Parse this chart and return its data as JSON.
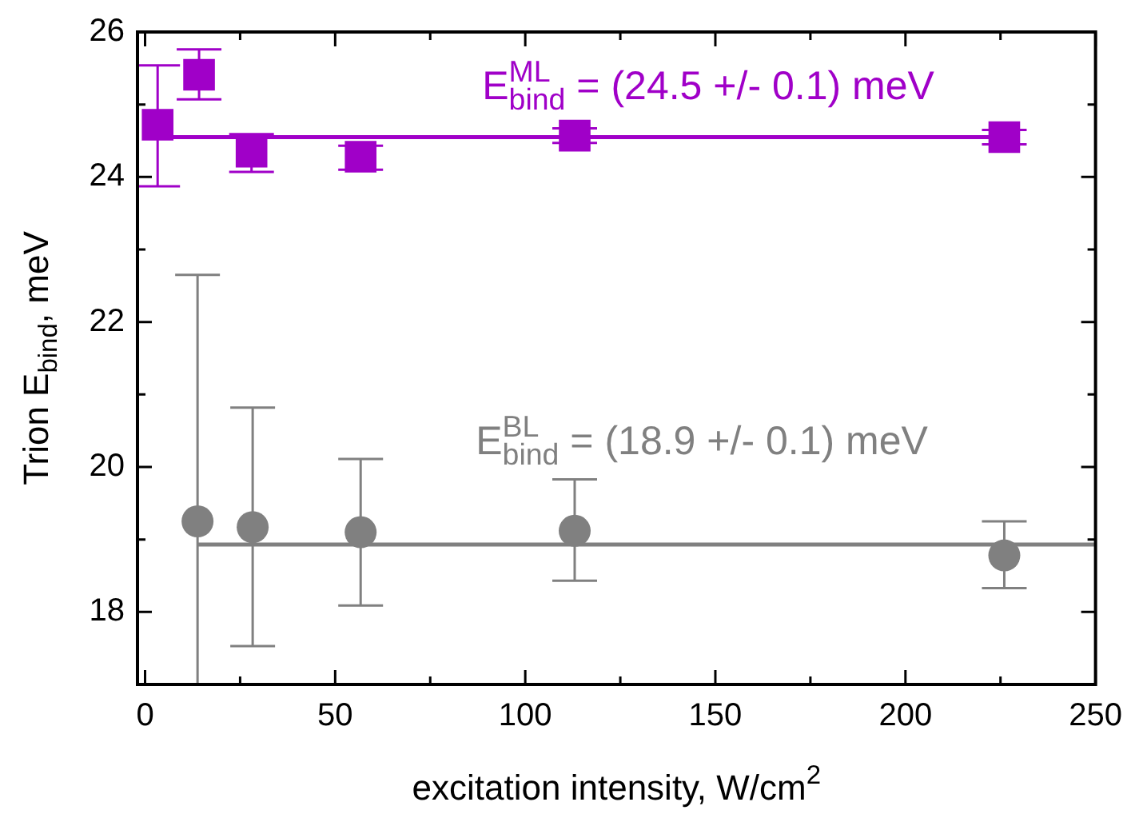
{
  "chart_data": {
    "type": "scatter",
    "xlabel": "excitation intensity, W/cm$^{2}$",
    "ylabel": "Trion E$_{bind}$, meV",
    "xlim": [
      -2,
      250
    ],
    "xticks": [
      0,
      {
        "value": 25,
        "label": null
      },
      50,
      {
        "value": 75,
        "label": null
      },
      100,
      {
        "value": 125,
        "label": null
      },
      150,
      {
        "value": 175,
        "label": null
      },
      200,
      {
        "value": 225,
        "label": null
      },
      250
    ],
    "ylim": [
      17,
      26
    ],
    "yticks": [
      {
        "value": 17,
        "label": null
      },
      18,
      {
        "value": 19,
        "label": null
      },
      20,
      {
        "value": 21,
        "label": null
      },
      22,
      {
        "value": 23,
        "label": null
      },
      24,
      {
        "value": 25,
        "label": null
      },
      26
    ],
    "grid": false,
    "legend": false,
    "series": [
      {
        "marker": "square",
        "color": "#a000c8",
        "x": [
          3.3,
          14.2,
          28,
          56.7,
          113,
          226
        ],
        "values": [
          24.72,
          25.41,
          24.35,
          24.28,
          24.57,
          24.55
        ],
        "errors": [
          [
            23.87,
            25.54
          ],
          [
            25.07,
            25.76
          ],
          [
            24.07,
            24.59
          ],
          [
            24.1,
            24.43
          ],
          0.1,
          0.1
        ]
      },
      {
        "marker": "circle",
        "color": "#808080",
        "x": [
          13.8,
          28.3,
          56.7,
          113,
          226
        ],
        "values": [
          19.25,
          19.17,
          19.1,
          19.12,
          18.78
        ],
        "errors": [
          [
            17,
            22.65
          ],
          [
            17.53,
            20.82
          ],
          [
            18.09,
            20.11
          ],
          [
            18.43,
            19.83
          ],
          [
            18.33,
            19.25
          ]
        ]
      },
      {
        "type": "line",
        "marker": "none",
        "color": "#a000c8",
        "x": [
          3.7,
          226
        ],
        "values": [
          24.55,
          24.55
        ]
      },
      {
        "type": "line",
        "marker": "none",
        "color": "#808080",
        "x": [
          13.8,
          250
        ],
        "values": [
          18.93,
          18.93
        ]
      }
    ],
    "annotations": [
      "E$^{ML}$$_{bind}$ = (24.5 +/- 0.1) meV",
      "E$^{BL}$$_{bind}$ = (18.9 +/- 0.1) meV"
    ]
  }
}
